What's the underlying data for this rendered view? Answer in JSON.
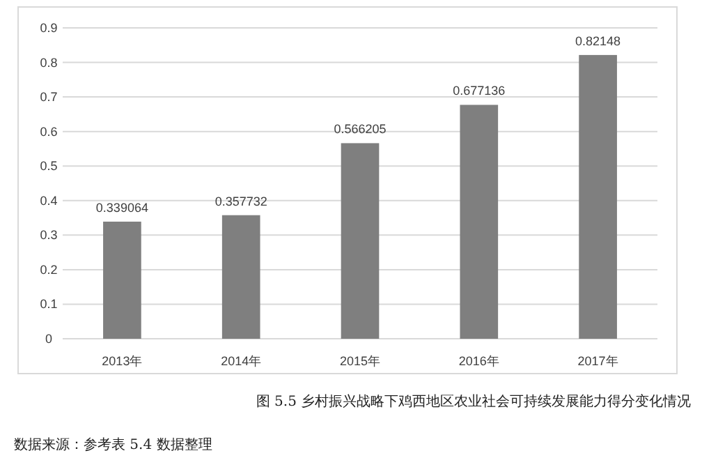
{
  "chart_data": {
    "type": "bar",
    "title": "图 5.5 乡村振兴战略下鸡西地区农业社会可持续发展能力得分变化情况",
    "categories": [
      "2013年",
      "2014年",
      "2015年",
      "2016年",
      "2017年"
    ],
    "values": [
      0.339064,
      0.357732,
      0.566205,
      0.677136,
      0.82148
    ],
    "color": "#7f7f7f",
    "ylim": [
      0,
      0.9
    ],
    "yticks": [
      0,
      0.1,
      0.2,
      0.3,
      0.4,
      0.5,
      0.6,
      0.7,
      0.8,
      0.9
    ],
    "grid": "y",
    "data_labels": true,
    "annotations": [
      "数据来源：参考表 5.4 数据整理"
    ]
  }
}
